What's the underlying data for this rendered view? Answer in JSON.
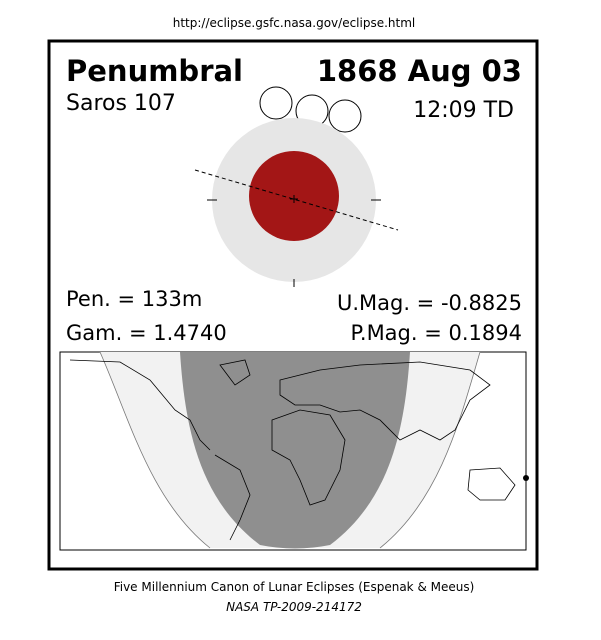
{
  "header": {
    "url": "http://eclipse.gsfc.nasa.gov/eclipse.html"
  },
  "eclipse": {
    "type": "Penumbral",
    "date": "1868 Aug 03",
    "saros": "Saros 107",
    "time": "12:09 TD",
    "pen": "Pen. = 133m",
    "gam": "Gam. = 1.4740",
    "umag": "U.Mag. = -0.8825",
    "pmag": "P.Mag. = 0.1894"
  },
  "footer": {
    "title": "Five Millennium Canon of Lunar Eclipses (Espenak & Meeus)",
    "ref": "NASA TP-2009-214172"
  }
}
